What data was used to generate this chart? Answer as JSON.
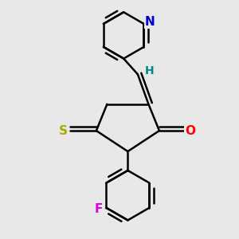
{
  "bg_color": "#e8e8e8",
  "bond_color": "#000000",
  "bond_width": 1.8,
  "atom_colors": {
    "N_py": "#0000cc",
    "N_ring": "#2222cc",
    "O": "#ff0000",
    "S_thioxo": "#aaaa00",
    "S_ring": "#000000",
    "F": "#dd00dd",
    "H": "#008888",
    "C": "#000000"
  },
  "font_size": 10,
  "fig_size": [
    3.0,
    3.0
  ],
  "dpi": 100
}
